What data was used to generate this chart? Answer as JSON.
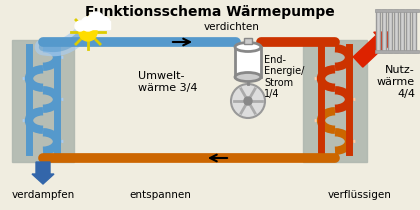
{
  "title": "Funktionsschema Wärmepumpe",
  "title_fontsize": 10,
  "bg_color": "#f0ede0",
  "labels": {
    "umwelt": "Umwelt-\nwärme 3/4",
    "nutz": "Nutz-\nwärme\n4/4",
    "end_energie": "End-\nEnergie/\nStrom\n1/4",
    "verdampfen": "verdampfen",
    "entspannen": "entspannen",
    "verdichten": "verdichten",
    "verfluessigen": "verflüssigen"
  },
  "colors": {
    "blue_coil": "#5599cc",
    "blue_arrow": "#3366aa",
    "red_coil": "#cc3300",
    "orange_pipe": "#cc6600",
    "gray_box": "#b0b8b0",
    "black": "#000000",
    "blue_light": "#aaccee",
    "red_arrow": "#dd2200",
    "sun_yellow": "#ffdd00",
    "sun_ray": "#ddcc00"
  }
}
